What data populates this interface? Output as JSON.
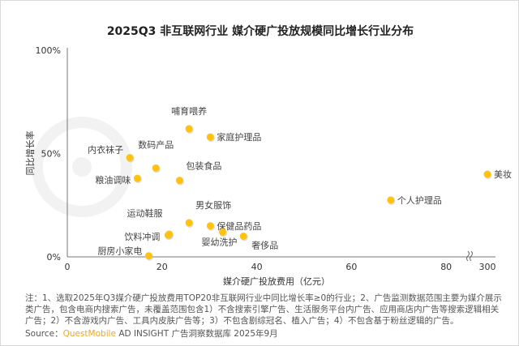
{
  "title": "2025Q3 非互联网行业 媒介硬广投放规模同比增长行业分布",
  "watermark": "QUESTMOBILE",
  "chart_data": {
    "type": "scatter",
    "title": "2025Q3 非互联网行业 媒介硬广投放规模同比增长行业分布",
    "xlabel": "媒介硬广投放费用（亿元）",
    "ylabel": "同比增长率",
    "xlim": [
      0,
      300
    ],
    "x_axis_break": [
      90,
      295
    ],
    "ylim": [
      0,
      100
    ],
    "x_ticks": [
      "0",
      "20",
      "40",
      "60",
      "80",
      "300"
    ],
    "y_ticks": [
      "0%",
      "50%",
      "100%"
    ],
    "grid": false,
    "point_color": "#FFC20E",
    "points": [
      {
        "label": "哺育喂养",
        "x": 25.7,
        "y": 62
      },
      {
        "label": "家庭护理品",
        "x": 30.2,
        "y": 58
      },
      {
        "label": "内衣袜子",
        "x": 13.2,
        "y": 48
      },
      {
        "label": "数码产品",
        "x": 18.7,
        "y": 43
      },
      {
        "label": "粮油调味",
        "x": 14.8,
        "y": 38
      },
      {
        "label": "包装食品",
        "x": 23.7,
        "y": 37
      },
      {
        "label": "男女服饰",
        "x": 25.7,
        "y": 16.5
      },
      {
        "label": "保健品药品",
        "x": 30.2,
        "y": 15
      },
      {
        "label": "婴幼洗护",
        "x": 32.8,
        "y": 12
      },
      {
        "label": "奢侈品",
        "x": 37.2,
        "y": 10
      },
      {
        "label": "运动鞋服",
        "x": 21.5,
        "y": 11
      },
      {
        "label": "饮料冲调",
        "x": 21.3,
        "y": 10.5
      },
      {
        "label": "厨房小家电",
        "x": 17.2,
        "y": 0.5
      },
      {
        "label": "个人护理品",
        "x": 68.3,
        "y": 27.5
      },
      {
        "label": "美妆",
        "x": 300,
        "y": 40
      }
    ]
  },
  "notes": "注：1、选取2025年Q3媒介硬广投放费用TOP20非互联网行业中同比增长率≥0的行业；2、广告监测数据范围主要为媒介展示类广告，包含电商内搜索广告，未覆盖范围包含1）不含搜索引擎广告、生活服务平台内广告、应用商店内广告等搜索逻辑相关广告；2）不含游戏内广告、工具内皮肤广告等；3）不包含剧综冠名、植入广告；4）不包含基于粉丝逻辑的广告。",
  "source": {
    "prefix": "Source：",
    "brand": "QuestMobile",
    "rest": " AD INSIGHT 广告洞察数据库 2025年9月"
  }
}
